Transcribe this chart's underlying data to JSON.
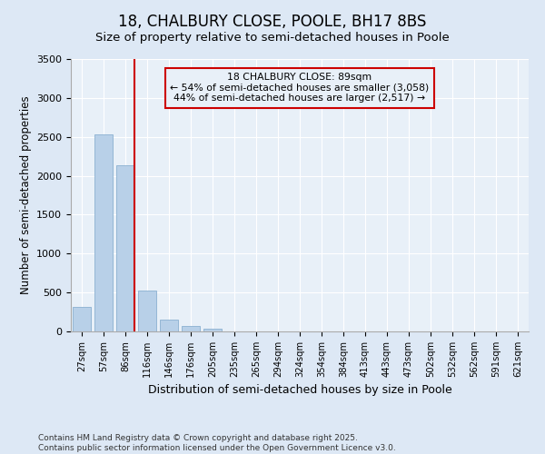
{
  "title": "18, CHALBURY CLOSE, POOLE, BH17 8BS",
  "subtitle": "Size of property relative to semi-detached houses in Poole",
  "xlabel": "Distribution of semi-detached houses by size in Poole",
  "ylabel": "Number of semi-detached properties",
  "categories": [
    "27sqm",
    "57sqm",
    "86sqm",
    "116sqm",
    "146sqm",
    "176sqm",
    "205sqm",
    "235sqm",
    "265sqm",
    "294sqm",
    "324sqm",
    "354sqm",
    "384sqm",
    "413sqm",
    "443sqm",
    "473sqm",
    "502sqm",
    "532sqm",
    "562sqm",
    "591sqm",
    "621sqm"
  ],
  "values": [
    320,
    2530,
    2130,
    530,
    155,
    65,
    38,
    5,
    0,
    0,
    0,
    0,
    0,
    0,
    0,
    0,
    0,
    0,
    0,
    0,
    0
  ],
  "bar_color": "#b8d0e8",
  "bar_edge_color": "#8ab0d0",
  "vline_color": "#cc0000",
  "annotation_text": "18 CHALBURY CLOSE: 89sqm\n← 54% of semi-detached houses are smaller (3,058)\n44% of semi-detached houses are larger (2,517) →",
  "annotation_box_color": "#cc0000",
  "background_color": "#dde8f5",
  "plot_bg_color": "#e8f0f8",
  "ylim": [
    0,
    3500
  ],
  "yticks": [
    0,
    500,
    1000,
    1500,
    2000,
    2500,
    3000,
    3500
  ],
  "footer_line1": "Contains HM Land Registry data © Crown copyright and database right 2025.",
  "footer_line2": "Contains public sector information licensed under the Open Government Licence v3.0."
}
